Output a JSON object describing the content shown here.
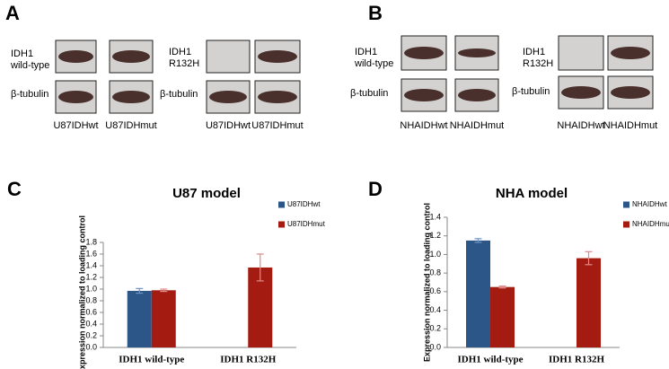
{
  "figure": {
    "blot_panels": [
      {
        "label": "A",
        "groups": [
          {
            "target": [
              "IDH1",
              "wild-type"
            ],
            "loading": "β-tubulin",
            "lanes": [
              "U87IDHwt",
              "U87IDHmut"
            ]
          },
          {
            "target": [
              "IDH1",
              "R132H"
            ],
            "loading": "β-tubulin",
            "lanes": [
              "U87IDHwt",
              "U87IDHmut"
            ]
          }
        ]
      },
      {
        "label": "B",
        "groups": [
          {
            "target": [
              "IDH1",
              "wild-type"
            ],
            "loading": "β-tubulin",
            "lanes": [
              "NHAIDHwt",
              "NHAIDHmut"
            ]
          },
          {
            "target": [
              "IDH1",
              "R132H"
            ],
            "loading": "β-tubulin",
            "lanes": [
              "NHAIDHwt",
              "NHAIDHmut"
            ]
          }
        ]
      }
    ]
  },
  "chart_data": [
    {
      "type": "bar",
      "panel": "C",
      "title": "U87 model",
      "ylabel": "Expression normalized to loading control",
      "categories": [
        "IDH1 wild-type",
        "IDH1 R132H"
      ],
      "series": [
        {
          "name": "U87IDHwt",
          "color": "#2b5687",
          "values": [
            0.97,
            null
          ],
          "errors": [
            0.04,
            null
          ]
        },
        {
          "name": "U87IDHmut",
          "color": "#a41b12",
          "values": [
            0.98,
            1.37
          ],
          "errors": [
            0.02,
            0.23
          ]
        }
      ],
      "ylim": [
        0,
        1.8
      ],
      "yticks": [
        {
          "value": 0,
          "label": "0.0"
        },
        {
          "value": 0.2,
          "label": "0.2"
        },
        {
          "value": 0.4,
          "label": "0.4"
        },
        {
          "value": 0.6,
          "label": "0.6"
        },
        {
          "value": 0.8,
          "label": "0.8"
        },
        {
          "value": 1,
          "label": "1.0"
        },
        {
          "value": 1.2,
          "label": "1.2"
        },
        {
          "value": 1.4,
          "label": "1.4"
        },
        {
          "value": 1.6,
          "label": "1.6"
        },
        {
          "value": 1.8,
          "label": "1.8"
        }
      ]
    },
    {
      "type": "bar",
      "panel": "D",
      "title": "NHA model",
      "ylabel": "Expression normalized to loading control",
      "categories": [
        "IDH1 wild-type",
        "IDH1 R132H"
      ],
      "series": [
        {
          "name": "NHAIDHwt",
          "color": "#2b5687",
          "values": [
            1.15,
            null
          ],
          "errors": [
            0.02,
            null
          ]
        },
        {
          "name": "NHAIDHmut",
          "color": "#a41b12",
          "values": [
            0.65,
            0.96
          ],
          "errors": [
            0.01,
            0.07
          ]
        }
      ],
      "ylim": [
        0,
        1.4
      ],
      "yticks": [
        {
          "value": 0,
          "label": "0.0"
        },
        {
          "value": 0.2,
          "label": "0.2"
        },
        {
          "value": 0.4,
          "label": "0.4"
        },
        {
          "value": 0.6,
          "label": "0.6"
        },
        {
          "value": 0.8,
          "label": "0.8"
        },
        {
          "value": 1,
          "label": "1.0"
        },
        {
          "value": 1.2,
          "label": "1.2"
        },
        {
          "value": 1.4,
          "label": "1.4"
        }
      ]
    }
  ]
}
